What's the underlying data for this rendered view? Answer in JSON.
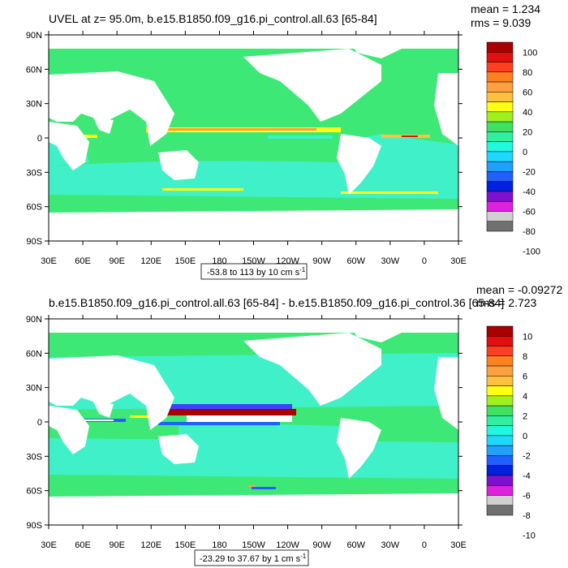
{
  "panels": [
    {
      "title": "UVEL at z=  95.0m, b.e15.B1850.f09_g16.pi_control.all.63 [65-84]",
      "stats_mean": "mean = 1.234",
      "stats_rms": "rms = 9.039",
      "range_label": "-53.8 to 113 by 10 cm s",
      "range_unit_sup": "-1",
      "colorbar_labels": [
        "100",
        "80",
        "60",
        "40",
        "20",
        "0",
        "-20",
        "-40",
        "-60",
        "-80",
        "-100"
      ]
    },
    {
      "title": "b.e15.B1850.f09_g16.pi_control.all.63 [65-84] - b.e15.B1850.f09_g16.pi_control.36 [65-84]",
      "stats_mean": "mean = -0.09272",
      "stats_rms": "rms = 2.723",
      "range_label": "-23.29 to 37.67 by 1 cm s",
      "range_unit_sup": "-1",
      "colorbar_labels": [
        "10",
        "8",
        "6",
        "4",
        "2",
        "0",
        "-2",
        "-4",
        "-6",
        "-8",
        "-10"
      ]
    }
  ],
  "lat_labels": [
    "90N",
    "60N",
    "30N",
    "0",
    "30S",
    "60S",
    "90S"
  ],
  "lon_labels": [
    "30E",
    "60E",
    "90E",
    "120E",
    "150E",
    "180",
    "150W",
    "120W",
    "90W",
    "60W",
    "30W",
    "0",
    "30E"
  ],
  "colors": {
    "ocean_base": "#3ee876",
    "ocean_light": "#40f0c8",
    "land": "#ffffff",
    "palette": [
      "#a80000",
      "#e01010",
      "#ff4020",
      "#ff8020",
      "#ffa040",
      "#ffc040",
      "#ffff10",
      "#a0f020",
      "#40e060",
      "#30f0a0",
      "#20f8e0",
      "#20d8ff",
      "#20a0ff",
      "#2060ff",
      "#0020e0",
      "#8010d0",
      "#e020e0",
      "#d0d0d0",
      "#707070"
    ]
  }
}
